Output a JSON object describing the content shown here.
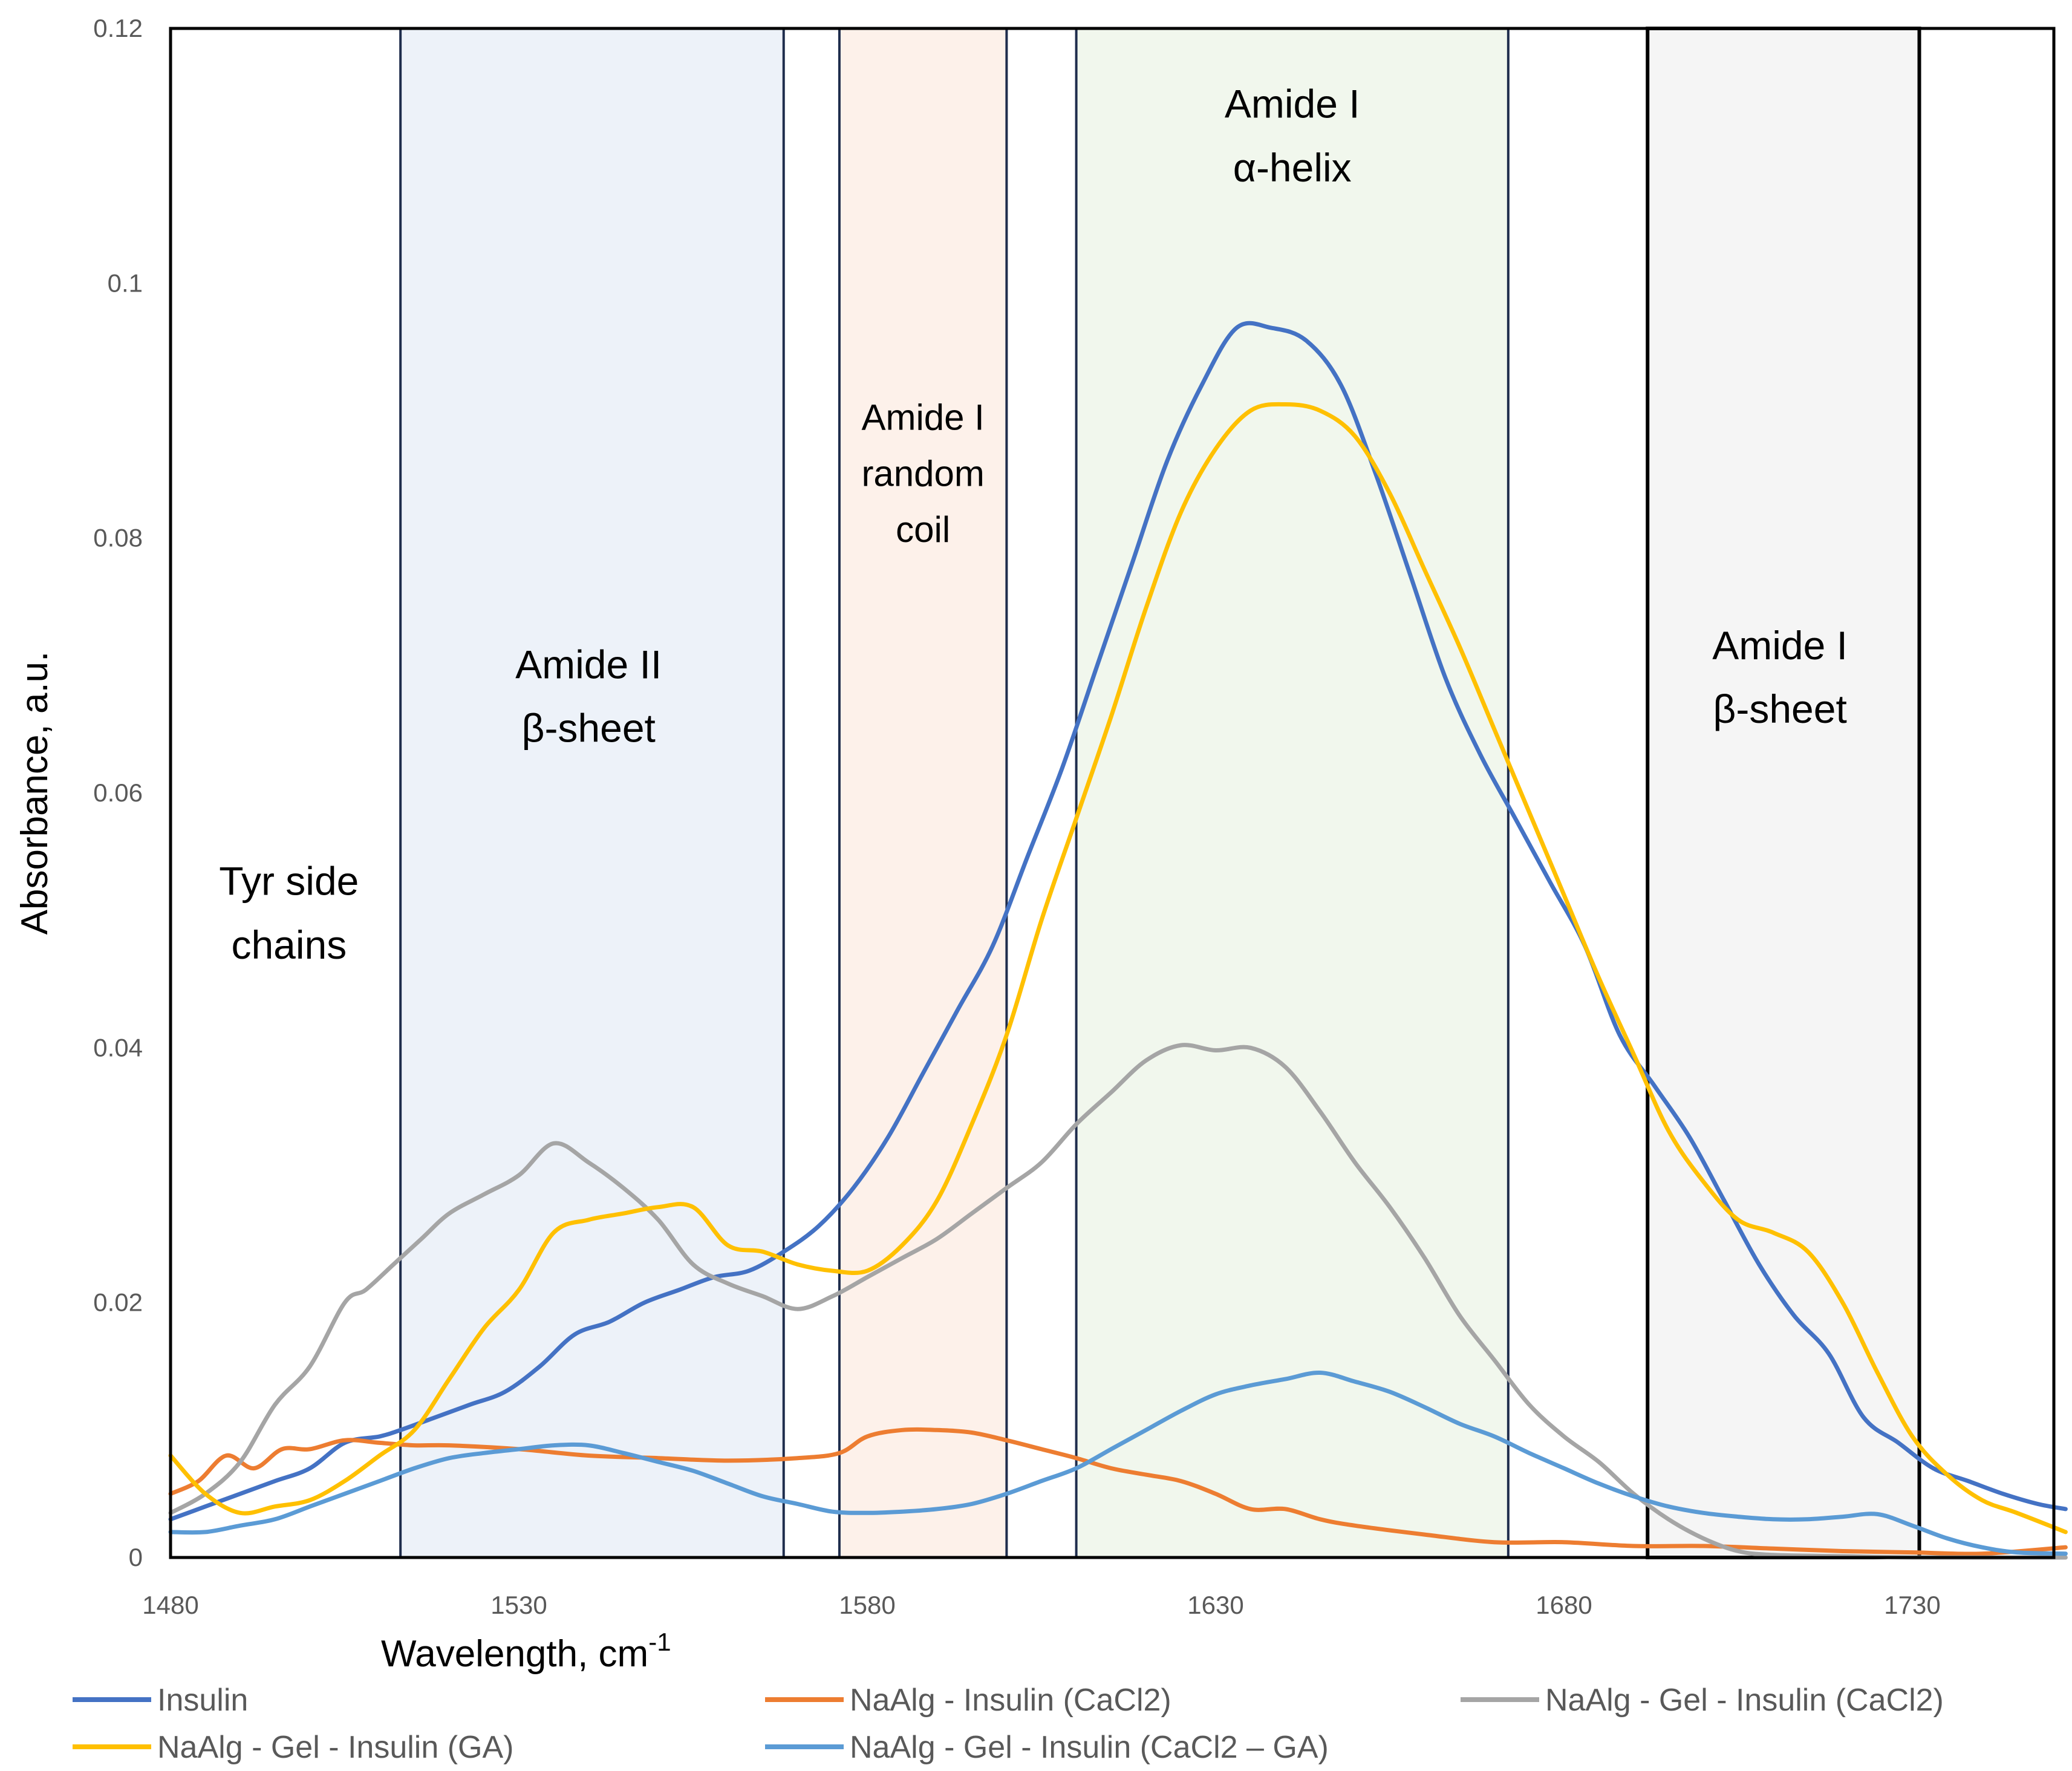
{
  "chart_data": {
    "type": "line",
    "title": "",
    "xlabel": "Wavelength, cm",
    "xlabel_superscript": "-1",
    "ylabel": "Absorbance, a.u.",
    "xlim": [
      1480,
      1752
    ],
    "ylim": [
      0,
      0.12
    ],
    "x_ticks": [
      1480,
      1530,
      1580,
      1630,
      1680,
      1730
    ],
    "y_ticks": [
      0,
      0.02,
      0.04,
      0.06,
      0.08,
      0.1,
      0.12
    ],
    "y_tick_labels": [
      "0",
      "0.02",
      "0.04",
      "0.06",
      "0.08",
      "0.1",
      "0.12"
    ],
    "grid": false,
    "legend_position": "bottom",
    "regions": [
      {
        "lines": [
          "Tyr side",
          "chains"
        ],
        "x_range": null,
        "fill": null,
        "label_x": 1497,
        "label_y": [
          0.052,
          0.047
        ]
      },
      {
        "lines": [
          "Amide II",
          "β-sheet"
        ],
        "x_range": [
          1513,
          1568
        ],
        "fill": "#dbe5f3",
        "label_x": 1540,
        "label_y": [
          0.069,
          0.064
        ]
      },
      {
        "lines": [
          "Amide I",
          "random",
          "coil"
        ],
        "x_range": [
          1576,
          1600
        ],
        "fill": "#fbe3d6",
        "label_x": 1588,
        "label_y": [
          0.0885,
          0.0841,
          0.0797
        ],
        "small": true
      },
      {
        "lines": [
          "Amide I",
          "α-helix"
        ],
        "x_range": [
          1610,
          1672
        ],
        "fill": "#e3efdc",
        "label_x": 1641,
        "label_y": [
          0.113,
          0.108
        ]
      },
      {
        "lines": [
          "Amide I",
          "β-sheet"
        ],
        "x_range": [
          1692,
          1731
        ],
        "fill": "#ececec",
        "label_x": 1711,
        "label_y": [
          0.0705,
          0.0655
        ]
      }
    ],
    "series": [
      {
        "name": "Insulin",
        "color": "#4472c4",
        "x": [
          1480,
          1485,
          1490,
          1495,
          1500,
          1505,
          1510,
          1513,
          1518,
          1523,
          1528,
          1533,
          1538,
          1543,
          1548,
          1553,
          1558,
          1563,
          1568,
          1573,
          1578,
          1583,
          1588,
          1593,
          1598,
          1603,
          1608,
          1613,
          1618,
          1623,
          1628,
          1633,
          1638,
          1643,
          1648,
          1653,
          1658,
          1663,
          1668,
          1673,
          1678,
          1683,
          1688,
          1693,
          1698,
          1703,
          1708,
          1713,
          1718,
          1723,
          1728,
          1733,
          1738,
          1743,
          1748,
          1752
        ],
        "y": [
          0.003,
          0.004,
          0.005,
          0.006,
          0.007,
          0.009,
          0.0095,
          0.01,
          0.011,
          0.012,
          0.013,
          0.015,
          0.0175,
          0.0185,
          0.02,
          0.021,
          0.022,
          0.0225,
          0.024,
          0.026,
          0.029,
          0.033,
          0.038,
          0.043,
          0.048,
          0.055,
          0.062,
          0.07,
          0.078,
          0.086,
          0.092,
          0.0965,
          0.0965,
          0.0955,
          0.092,
          0.085,
          0.077,
          0.069,
          0.063,
          0.058,
          0.053,
          0.048,
          0.041,
          0.037,
          0.033,
          0.028,
          0.023,
          0.019,
          0.016,
          0.011,
          0.009,
          0.007,
          0.006,
          0.005,
          0.0042,
          0.0038
        ]
      },
      {
        "name": "NaAlg - Insulin (CaCl2)",
        "color": "#ed7d31",
        "x": [
          1480,
          1484,
          1488,
          1492,
          1496,
          1500,
          1505,
          1510,
          1515,
          1520,
          1530,
          1540,
          1550,
          1560,
          1570,
          1576,
          1580,
          1585,
          1590,
          1595,
          1600,
          1605,
          1610,
          1615,
          1620,
          1625,
          1630,
          1635,
          1640,
          1645,
          1650,
          1660,
          1670,
          1680,
          1690,
          1700,
          1710,
          1720,
          1730,
          1740,
          1752
        ],
        "y": [
          0.005,
          0.006,
          0.008,
          0.007,
          0.0085,
          0.0085,
          0.0092,
          0.009,
          0.0088,
          0.0088,
          0.0085,
          0.008,
          0.0078,
          0.0076,
          0.0078,
          0.0082,
          0.0095,
          0.01,
          0.01,
          0.0098,
          0.0092,
          0.0085,
          0.0078,
          0.007,
          0.0065,
          0.006,
          0.005,
          0.0038,
          0.0038,
          0.003,
          0.0025,
          0.0018,
          0.0012,
          0.0012,
          0.0009,
          0.0009,
          0.0007,
          0.0005,
          0.0004,
          0.0003,
          0.0008
        ]
      },
      {
        "name": "NaAlg - Gel - Insulin (CaCl2)",
        "color": "#a5a5a5",
        "x": [
          1480,
          1485,
          1490,
          1495,
          1500,
          1505,
          1508,
          1512,
          1516,
          1520,
          1525,
          1530,
          1535,
          1540,
          1545,
          1550,
          1555,
          1560,
          1565,
          1570,
          1575,
          1580,
          1585,
          1590,
          1595,
          1600,
          1605,
          1610,
          1615,
          1620,
          1625,
          1630,
          1635,
          1640,
          1645,
          1650,
          1655,
          1660,
          1665,
          1670,
          1675,
          1680,
          1685,
          1690,
          1695,
          1700,
          1705,
          1710,
          1720,
          1730,
          1752
        ],
        "y": [
          0.0035,
          0.005,
          0.0075,
          0.012,
          0.015,
          0.02,
          0.021,
          0.023,
          0.025,
          0.027,
          0.0285,
          0.03,
          0.0325,
          0.031,
          0.029,
          0.0265,
          0.023,
          0.0215,
          0.0205,
          0.0195,
          0.0205,
          0.022,
          0.0235,
          0.025,
          0.027,
          0.029,
          0.031,
          0.034,
          0.0365,
          0.039,
          0.0402,
          0.0398,
          0.04,
          0.0385,
          0.035,
          0.031,
          0.0275,
          0.0235,
          0.019,
          0.0155,
          0.012,
          0.0095,
          0.0075,
          0.005,
          0.003,
          0.0015,
          0.0005,
          0.0002,
          0.0001,
          0.0,
          0.0
        ]
      },
      {
        "name": "NaAlg - Gel - Insulin (GA)",
        "color": "#ffc000",
        "x": [
          1480,
          1485,
          1490,
          1495,
          1500,
          1505,
          1510,
          1515,
          1520,
          1525,
          1530,
          1535,
          1540,
          1545,
          1550,
          1555,
          1560,
          1565,
          1570,
          1575,
          1580,
          1585,
          1590,
          1595,
          1600,
          1605,
          1610,
          1615,
          1620,
          1625,
          1630,
          1635,
          1640,
          1645,
          1650,
          1655,
          1660,
          1665,
          1670,
          1675,
          1680,
          1685,
          1690,
          1695,
          1700,
          1705,
          1710,
          1715,
          1720,
          1725,
          1730,
          1735,
          1740,
          1745,
          1752
        ],
        "y": [
          0.008,
          0.005,
          0.0035,
          0.004,
          0.0045,
          0.006,
          0.008,
          0.01,
          0.014,
          0.018,
          0.021,
          0.0255,
          0.0265,
          0.027,
          0.0275,
          0.0275,
          0.0245,
          0.024,
          0.023,
          0.0225,
          0.0225,
          0.0245,
          0.028,
          0.034,
          0.041,
          0.05,
          0.058,
          0.066,
          0.0745,
          0.082,
          0.087,
          0.09,
          0.0905,
          0.09,
          0.088,
          0.0835,
          0.0775,
          0.0715,
          0.065,
          0.0585,
          0.052,
          0.0455,
          0.0395,
          0.0335,
          0.0295,
          0.0265,
          0.0255,
          0.024,
          0.02,
          0.0145,
          0.0095,
          0.0065,
          0.0045,
          0.0035,
          0.002
        ]
      },
      {
        "name": "NaAlg - Gel - Insulin (CaCl2 – GA)",
        "color": "#5b9bd5",
        "x": [
          1480,
          1485,
          1490,
          1495,
          1500,
          1505,
          1510,
          1515,
          1520,
          1525,
          1530,
          1535,
          1540,
          1545,
          1550,
          1555,
          1560,
          1565,
          1570,
          1575,
          1580,
          1585,
          1590,
          1595,
          1600,
          1605,
          1610,
          1615,
          1620,
          1625,
          1630,
          1635,
          1640,
          1645,
          1650,
          1655,
          1660,
          1665,
          1670,
          1675,
          1680,
          1685,
          1690,
          1695,
          1700,
          1705,
          1710,
          1715,
          1720,
          1725,
          1730,
          1735,
          1740,
          1745,
          1752
        ],
        "y": [
          0.002,
          0.002,
          0.0025,
          0.003,
          0.004,
          0.005,
          0.006,
          0.007,
          0.0078,
          0.0082,
          0.0085,
          0.0088,
          0.0088,
          0.0082,
          0.0075,
          0.0068,
          0.0058,
          0.0048,
          0.0042,
          0.0036,
          0.0035,
          0.0036,
          0.0038,
          0.0042,
          0.005,
          0.006,
          0.007,
          0.0085,
          0.01,
          0.0115,
          0.0128,
          0.0135,
          0.014,
          0.0145,
          0.0138,
          0.013,
          0.0118,
          0.0105,
          0.0095,
          0.0082,
          0.007,
          0.0058,
          0.0048,
          0.004,
          0.0035,
          0.0032,
          0.003,
          0.003,
          0.0032,
          0.0034,
          0.0025,
          0.0015,
          0.0008,
          0.0004,
          0.0003
        ]
      }
    ]
  }
}
